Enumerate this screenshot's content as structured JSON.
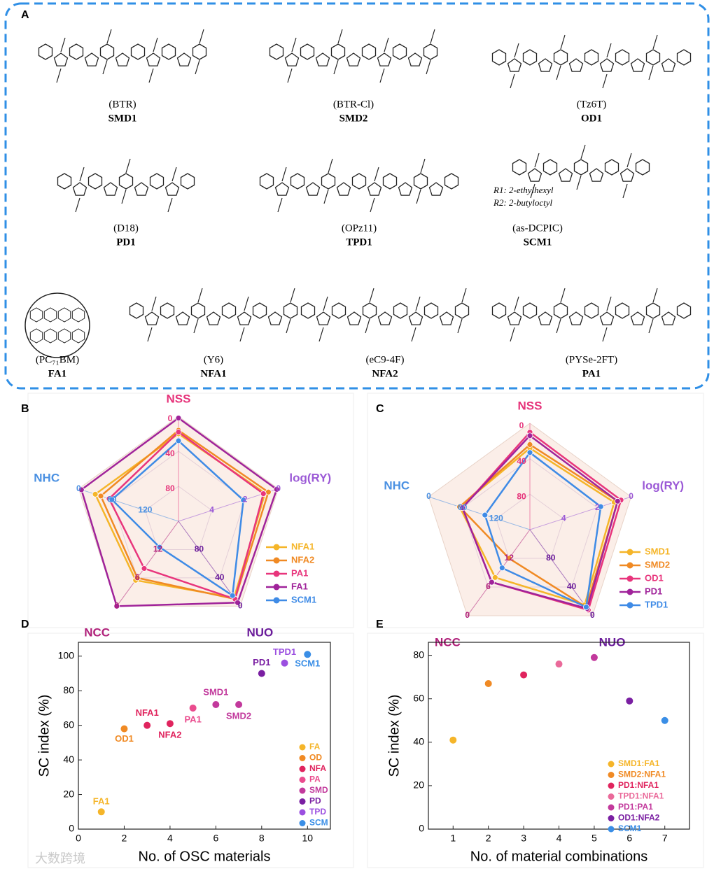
{
  "panel_labels": [
    "A",
    "B",
    "C",
    "D",
    "E"
  ],
  "panel_a": {
    "molecules": [
      {
        "name": "(BTR)",
        "code": "SMD1"
      },
      {
        "name": "(BTR-Cl)",
        "code": "SMD2"
      },
      {
        "name": "(Tz6T)",
        "code": "OD1"
      },
      {
        "name": "(D18)",
        "code": "PD1"
      },
      {
        "name": "(OPz11)",
        "code": "TPD1"
      },
      {
        "name": "(as-DCPIC)",
        "code": "SCM1"
      },
      {
        "name": "(PC₇₁BM)",
        "code": "FA1"
      },
      {
        "name": "(Y6)",
        "code": "NFA1"
      },
      {
        "name": "(eC9-4F)",
        "code": "NFA2"
      },
      {
        "name": "(PYSe-2FT)",
        "code": "PA1"
      }
    ],
    "annotations": [
      "R1: 2-ethylhexyl",
      "R2: 2-butyloctyl"
    ]
  },
  "chart_data": [
    {
      "type": "radar",
      "axes": [
        {
          "name": "NSS",
          "color": "#e6337a",
          "lim": [
            0,
            120
          ],
          "ticks": [
            0,
            40,
            80
          ]
        },
        {
          "name": "log(RY)",
          "color": "#9b59d6",
          "lim": [
            0,
            6
          ],
          "ticks": [
            0,
            2,
            4
          ]
        },
        {
          "name": "NUO",
          "color": "#6a1b9a",
          "lim": [
            0,
            120
          ],
          "ticks": [
            0,
            40,
            80
          ]
        },
        {
          "name": "NCC",
          "color": "#b0207a",
          "lim": [
            0,
            18
          ],
          "ticks": [
            0,
            6,
            12
          ]
        },
        {
          "name": "NHC",
          "color": "#4a90e2",
          "lim": [
            0,
            180
          ],
          "ticks": [
            0,
            60,
            120
          ]
        }
      ],
      "series": [
        {
          "name": "NFA1",
          "color": "#f5b529",
          "values": [
            20,
            0.8,
            12,
            5.5,
            30
          ]
        },
        {
          "name": "NFA2",
          "color": "#f08a24",
          "values": [
            16,
            0.6,
            10,
            6,
            40
          ]
        },
        {
          "name": "PA1",
          "color": "#e8357c",
          "values": [
            18,
            0.9,
            10,
            8,
            55
          ]
        },
        {
          "name": "FA1",
          "color": "#a0239a",
          "values": [
            2,
            0.1,
            5,
            0,
            5
          ]
        },
        {
          "name": "SCM1",
          "color": "#3f8be6",
          "values": [
            28,
            2.1,
            15,
            12.5,
            60
          ]
        }
      ]
    },
    {
      "type": "radar",
      "axes": [
        {
          "name": "NSS",
          "color": "#e6337a",
          "lim": [
            0,
            120
          ],
          "ticks": [
            0,
            40,
            80
          ]
        },
        {
          "name": "log(RY)",
          "color": "#9b59d6",
          "lim": [
            0,
            6
          ],
          "ticks": [
            0,
            2,
            4
          ]
        },
        {
          "name": "NUO",
          "color": "#6a1b9a",
          "lim": [
            0,
            120
          ],
          "ticks": [
            0,
            40,
            80
          ]
        },
        {
          "name": "NCC",
          "color": "#b0207a",
          "lim": [
            0,
            18
          ],
          "ticks": [
            0,
            6,
            12
          ]
        },
        {
          "name": "NHC",
          "color": "#4a90e2",
          "lim": [
            0,
            180
          ],
          "ticks": [
            0,
            60,
            120
          ]
        }
      ],
      "series": [
        {
          "name": "SMD1",
          "color": "#f5b529",
          "values": [
            28,
            1.0,
            15,
            8,
            55
          ]
        },
        {
          "name": "SMD2",
          "color": "#f08a24",
          "values": [
            24,
            0.8,
            12,
            12,
            55
          ]
        },
        {
          "name": "OD1",
          "color": "#e8357c",
          "values": [
            10,
            0.6,
            8,
            7,
            60
          ]
        },
        {
          "name": "PD1",
          "color": "#a0239a",
          "values": [
            14,
            0.8,
            10,
            7,
            60
          ]
        },
        {
          "name": "TPD1",
          "color": "#3f8be6",
          "values": [
            33,
            1.8,
            12,
            10,
            100
          ]
        }
      ]
    },
    {
      "type": "scatter",
      "xlabel": "No. of OSC materials",
      "ylabel": "SC index (%)",
      "xlim": [
        0,
        11
      ],
      "ylim": [
        0,
        108
      ],
      "xticks": [
        0,
        2,
        4,
        6,
        8,
        10
      ],
      "yticks": [
        0,
        20,
        40,
        60,
        80,
        100
      ],
      "series": [
        {
          "name": "FA",
          "color": "#f5b529",
          "x": [
            1
          ],
          "y": [
            10
          ],
          "labels": [
            "FA1"
          ]
        },
        {
          "name": "OD",
          "color": "#f08a24",
          "x": [
            2
          ],
          "y": [
            58
          ],
          "labels": [
            "OD1"
          ]
        },
        {
          "name": "NFA",
          "color": "#e0245e",
          "x": [
            3,
            4
          ],
          "y": [
            60,
            61
          ],
          "labels": [
            "NFA1",
            "NFA2"
          ]
        },
        {
          "name": "PA",
          "color": "#ea4c8e",
          "x": [
            5
          ],
          "y": [
            70
          ],
          "labels": [
            "PA1"
          ]
        },
        {
          "name": "SMD",
          "color": "#c2399c",
          "x": [
            6,
            7
          ],
          "y": [
            72,
            72
          ],
          "labels": [
            "SMD1",
            "SMD2"
          ]
        },
        {
          "name": "PD",
          "color": "#7a1fa2",
          "x": [
            8
          ],
          "y": [
            90
          ],
          "labels": [
            "PD1"
          ]
        },
        {
          "name": "TPD",
          "color": "#9b4fe0",
          "x": [
            9
          ],
          "y": [
            96
          ],
          "labels": [
            "TPD1"
          ]
        },
        {
          "name": "SCM",
          "color": "#3a8ee6",
          "x": [
            10
          ],
          "y": [
            101
          ],
          "labels": [
            "SCM1"
          ]
        }
      ]
    },
    {
      "type": "scatter",
      "xlabel": "No. of material combinations",
      "ylabel": "SC index (%)",
      "xlim": [
        0.3,
        7.7
      ],
      "ylim": [
        0,
        86
      ],
      "xticks": [
        1,
        2,
        3,
        4,
        5,
        6,
        7
      ],
      "yticks": [
        0,
        20,
        40,
        60,
        80
      ],
      "series": [
        {
          "name": "SMD1:FA1",
          "color": "#f5b529",
          "x": [
            1
          ],
          "y": [
            41
          ]
        },
        {
          "name": "SMD2:NFA1",
          "color": "#f08a24",
          "x": [
            2
          ],
          "y": [
            67
          ]
        },
        {
          "name": "PD1:NFA1",
          "color": "#e0245e",
          "x": [
            3
          ],
          "y": [
            71
          ]
        },
        {
          "name": "TPD1:NFA1",
          "color": "#ea6a9a",
          "x": [
            4
          ],
          "y": [
            76
          ]
        },
        {
          "name": "PD1:PA1",
          "color": "#c2399c",
          "x": [
            5
          ],
          "y": [
            79
          ]
        },
        {
          "name": "OD1:NFA2",
          "color": "#7a1fa2",
          "x": [
            6
          ],
          "y": [
            59
          ]
        },
        {
          "name": "SCM1",
          "color": "#3a8ee6",
          "x": [
            7
          ],
          "y": [
            50
          ]
        }
      ]
    }
  ],
  "watermark": "大数跨境"
}
